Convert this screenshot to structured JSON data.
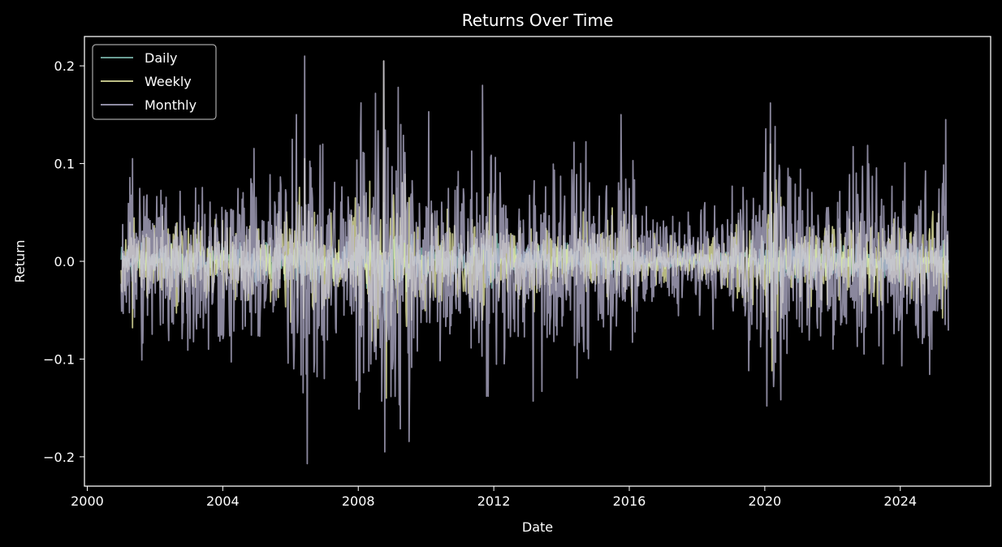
{
  "chart_data": {
    "type": "line",
    "title": "Returns Over Time",
    "xlabel": "Date",
    "ylabel": "Return",
    "xlim": [
      "1999-12-01",
      "2026-09-01"
    ],
    "ylim": [
      -0.23,
      0.23
    ],
    "x_ticks": [
      "2000",
      "2004",
      "2008",
      "2012",
      "2016",
      "2020",
      "2024"
    ],
    "y_ticks": [
      -0.2,
      -0.1,
      0.0,
      0.1,
      0.2
    ],
    "y_tick_labels": [
      "−0.2",
      "−0.1",
      "0.0",
      "0.1",
      "0.2"
    ],
    "grid": false,
    "legend": "upper-left",
    "background": "#000000",
    "series": [
      {
        "name": "Daily",
        "color": "#8dd3c7",
        "amplitude": 0.012,
        "peaks": [
          [
            "2008-10-01",
            0.06
          ],
          [
            "2008-10-15",
            -0.06
          ],
          [
            "2020-03-15",
            0.05
          ],
          [
            "2020-03-20",
            -0.05
          ]
        ]
      },
      {
        "name": "Weekly",
        "color": "#feffb3",
        "amplitude": 0.03,
        "peaks": [
          [
            "2001-05-01",
            -0.068
          ],
          [
            "2006-06-01",
            0.105
          ],
          [
            "2008-10-01",
            0.205
          ],
          [
            "2008-11-01",
            -0.14
          ],
          [
            "2011-09-01",
            -0.06
          ],
          [
            "2020-03-01",
            0.12
          ],
          [
            "2020-03-20",
            -0.112
          ],
          [
            "2025-04-01",
            -0.058
          ]
        ]
      },
      {
        "name": "Monthly",
        "color": "#bfbbd9",
        "amplitude": 0.065,
        "peaks": [
          [
            "2001-05-01",
            0.105
          ],
          [
            "2003-08-01",
            -0.09
          ],
          [
            "2004-04-01",
            -0.103
          ],
          [
            "2006-03-01",
            0.15
          ],
          [
            "2006-06-01",
            0.21
          ],
          [
            "2006-07-01",
            -0.207
          ],
          [
            "2007-01-01",
            -0.12
          ],
          [
            "2008-10-01",
            0.205
          ],
          [
            "2008-10-15",
            -0.195
          ],
          [
            "2009-04-01",
            0.14
          ],
          [
            "2010-02-01",
            0.153
          ],
          [
            "2011-09-01",
            0.18
          ],
          [
            "2011-11-01",
            -0.138
          ],
          [
            "2013-03-01",
            -0.143
          ],
          [
            "2013-06-01",
            -0.133
          ],
          [
            "2015-10-01",
            0.15
          ],
          [
            "2020-03-01",
            0.162
          ],
          [
            "2023-07-01",
            -0.105
          ],
          [
            "2025-05-01",
            0.145
          ]
        ]
      }
    ],
    "x_range": [
      "2001-01-01",
      "2025-06-01"
    ]
  }
}
